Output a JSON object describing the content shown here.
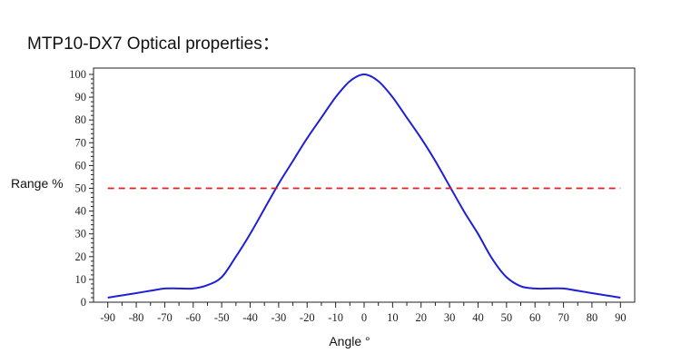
{
  "chart_data": {
    "type": "line",
    "title": "MTP10-DX7 Optical properties：",
    "xlabel": "Angle °",
    "ylabel": "Range %",
    "xlim": [
      -95,
      95
    ],
    "ylim": [
      0,
      100
    ],
    "x_ticks": [
      -90,
      -80,
      -70,
      -60,
      -50,
      -40,
      -30,
      -20,
      -10,
      0,
      10,
      20,
      30,
      40,
      50,
      60,
      70,
      80,
      90
    ],
    "y_ticks": [
      0,
      10,
      20,
      30,
      40,
      50,
      60,
      70,
      80,
      90,
      100
    ],
    "grid": false,
    "series": [
      {
        "color": "#1f1fd6",
        "style": "solid",
        "x": [
          -90,
          -85,
          -80,
          -75,
          -70,
          -65,
          -60,
          -55,
          -50,
          -45,
          -40,
          -35,
          -30,
          -25,
          -20,
          -15,
          -10,
          -5,
          0,
          5,
          10,
          15,
          20,
          25,
          30,
          35,
          40,
          45,
          50,
          55,
          60,
          65,
          70,
          75,
          80,
          85,
          90
        ],
        "y": [
          2,
          3,
          4,
          5,
          6,
          6,
          6,
          7.5,
          11,
          20,
          30,
          41,
          52,
          62,
          72,
          81,
          90,
          97,
          100,
          97,
          90,
          81,
          72,
          62,
          51,
          40,
          30,
          19,
          11,
          7,
          6,
          6,
          6,
          5,
          4,
          3,
          2
        ]
      },
      {
        "color": "#e02020",
        "style": "dashed",
        "x": [
          -90,
          90
        ],
        "y": [
          50,
          50
        ]
      }
    ]
  }
}
